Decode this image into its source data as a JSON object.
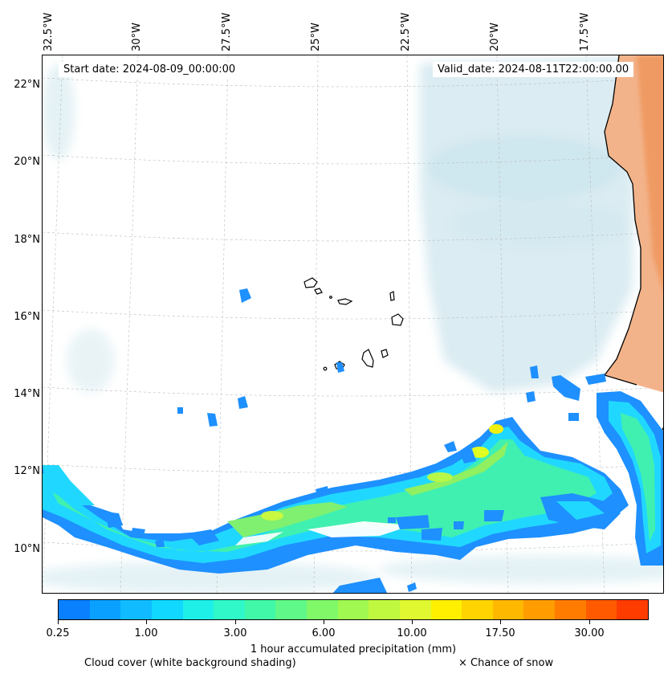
{
  "map": {
    "longitude_labels": [
      "32.5°W",
      "30°W",
      "27.5°W",
      "25°W",
      "22.5°W",
      "20°W",
      "17.5°W"
    ],
    "latitude_labels": [
      "22°N",
      "20°N",
      "18°N",
      "16°N",
      "14°N",
      "12°N",
      "10°N"
    ],
    "start_date": "Start date: 2024-08-09_00:00:00",
    "valid_date": "Valid_date: 2024-08-11T22:00:00.00",
    "colors": {
      "cloud": "#cfe6ee",
      "land_fill": "#f0a070",
      "coastline": "#000000",
      "precip_low": "#1e90ff",
      "precip_mid": "#40f0b0",
      "precip_high": "#e0ff20"
    }
  },
  "colorbar": {
    "colors": [
      "#0a80ff",
      "#0aa0ff",
      "#10bcff",
      "#10d8ff",
      "#1ef0e8",
      "#30f8c8",
      "#40f8a8",
      "#60f888",
      "#80f868",
      "#a0f850",
      "#c0f840",
      "#e0f830",
      "#fff000",
      "#ffd400",
      "#ffb800",
      "#ff9c00",
      "#ff7c00",
      "#ff5a00",
      "#ff3c00"
    ],
    "tick_labels": [
      "0.25",
      "1.00",
      "3.00",
      "6.00",
      "10.00",
      "17.50",
      "30.00"
    ],
    "label": "1 hour accumulated precipitation (mm)"
  },
  "captions": {
    "cloud_cover": "Cloud cover (white background shading)",
    "snow": "× Chance of snow"
  }
}
